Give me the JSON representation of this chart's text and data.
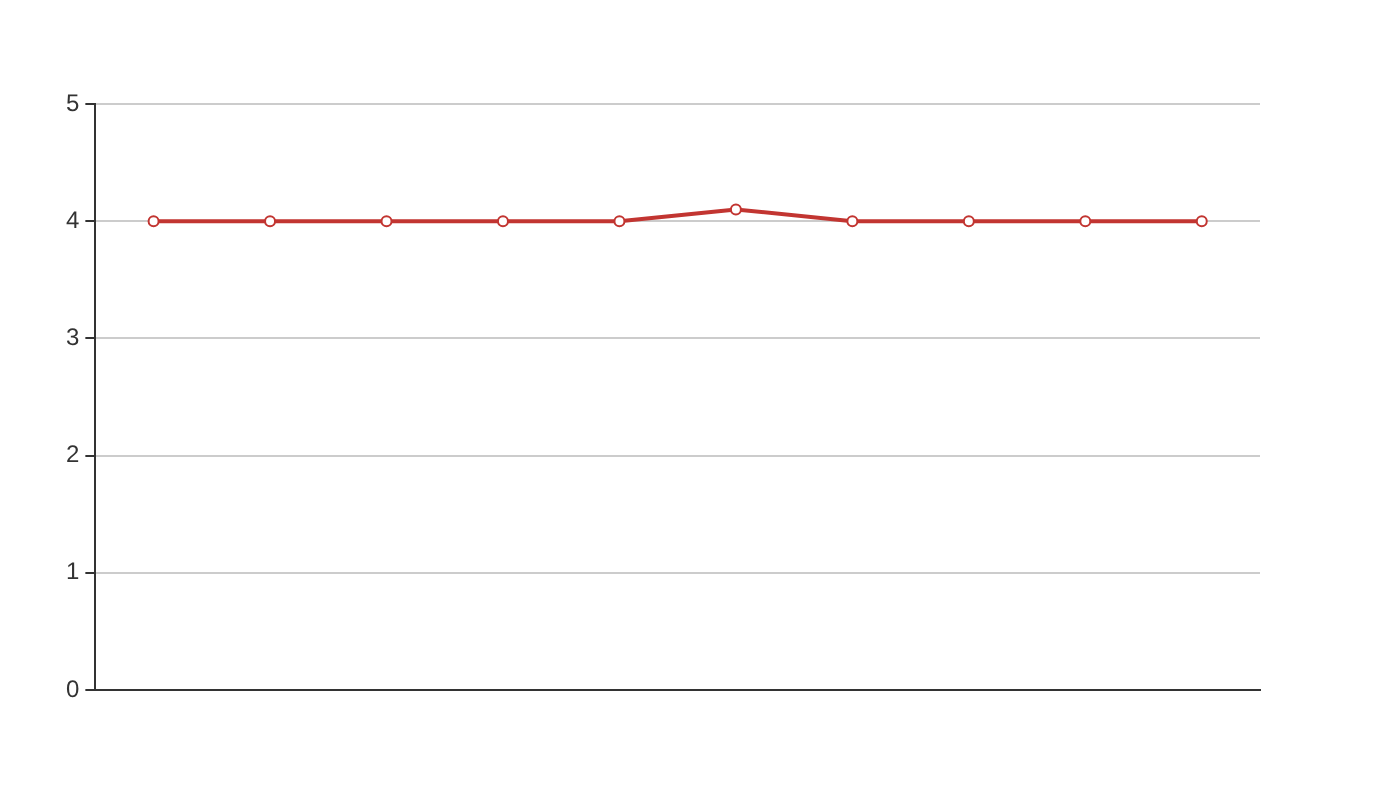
{
  "chart_data": {
    "type": "line",
    "categories": [
      null,
      null,
      null,
      null,
      null,
      null,
      null,
      null,
      null,
      null
    ],
    "series": [
      {
        "color": "#c23531",
        "values": [
          4,
          4,
          4,
          4,
          4,
          4.1,
          4,
          4,
          4,
          4
        ]
      }
    ],
    "ylim": [
      0,
      5
    ],
    "yticks": [
      0,
      1,
      2,
      3,
      4,
      5
    ],
    "grid": "y",
    "tick_labels": "y",
    "marker": "circle",
    "line_style": "solid",
    "legend": false
  }
}
